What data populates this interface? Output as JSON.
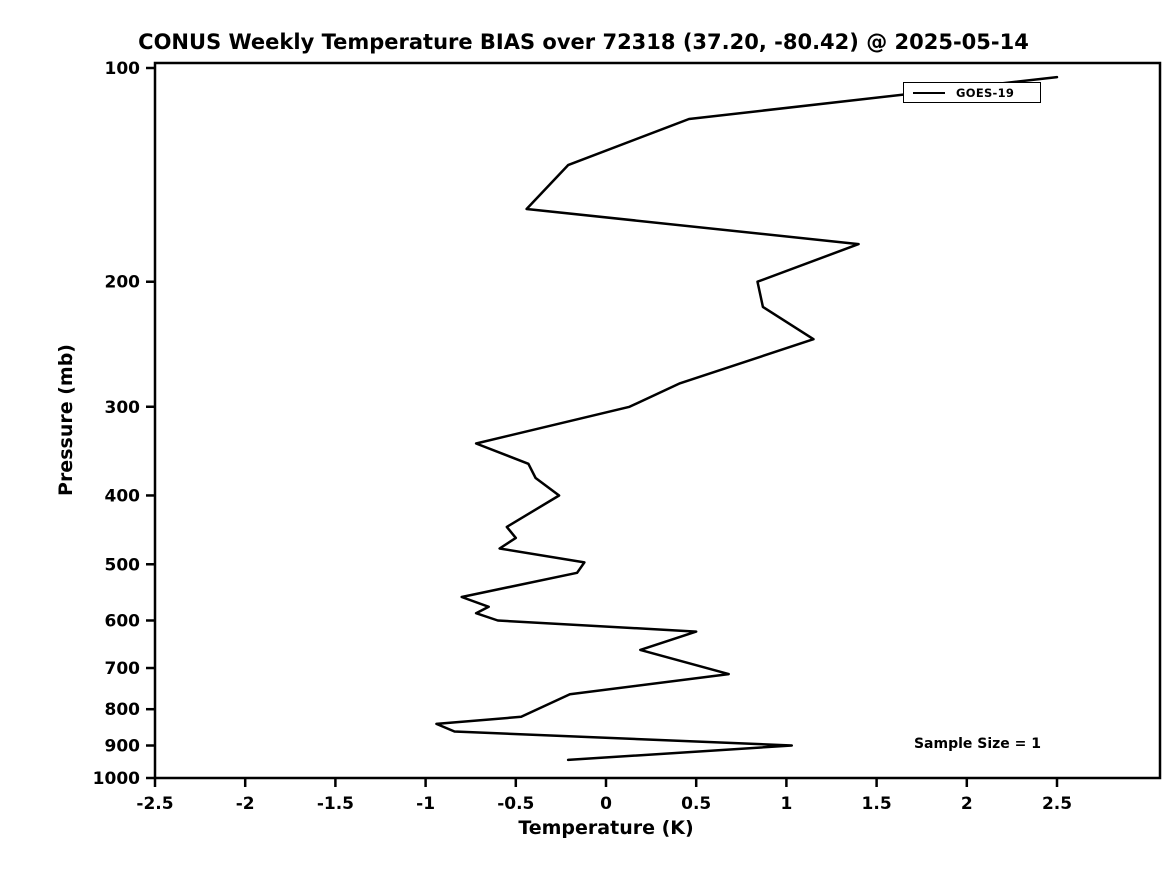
{
  "colors": {
    "line": "#000000",
    "frame": "#000000",
    "background": "#ffffff"
  },
  "chart_data": {
    "type": "line",
    "title": "CONUS Weekly Temperature BIAS over 72318 (37.20, -80.42) @ 2025-05-14",
    "xlabel": "Temperature (K)",
    "ylabel": "Pressure (mb)",
    "legend_label": "GOES-19",
    "legend_position": "upper right",
    "annotation": "Sample Size = 1",
    "xlim": [
      -2.5,
      2.5
    ],
    "ylim": [
      100,
      1000
    ],
    "y_scale": "log",
    "y_axis_inverted": true,
    "grid": false,
    "x_ticks": [
      -2.5,
      -2,
      -1.5,
      -1,
      -0.5,
      0,
      0.5,
      1,
      1.5,
      2,
      2.5
    ],
    "x_tick_labels": [
      "-2.5",
      "-2",
      "-1.5",
      "-1",
      "-0.5",
      "0",
      "0.5",
      "1",
      "1.5",
      "2",
      "2.5"
    ],
    "y_ticks": [
      100,
      200,
      300,
      400,
      500,
      600,
      700,
      800,
      900,
      1000
    ],
    "y_tick_labels": [
      "100",
      "200",
      "300",
      "400",
      "500",
      "600",
      "700",
      "800",
      "900",
      "1000"
    ],
    "series": [
      {
        "name": "GOES-19",
        "color": "#000000",
        "x_temperature_bias_K": [
          2.5,
          0.46,
          -0.21,
          -0.44,
          1.4,
          0.84,
          0.87,
          1.15,
          0.41,
          0.13,
          -0.72,
          -0.43,
          -0.39,
          -0.26,
          -0.55,
          -0.5,
          -0.59,
          -0.12,
          -0.16,
          -0.8,
          -0.65,
          -0.72,
          -0.6,
          0.5,
          0.19,
          0.68,
          -0.2,
          -0.47,
          -0.94,
          -0.84,
          1.03,
          -0.21
        ],
        "y_pressure_mb": [
          103,
          118,
          137,
          158,
          177,
          200,
          217,
          241,
          278,
          300,
          338,
          361,
          378,
          400,
          443,
          459,
          475,
          497,
          514,
          556,
          574,
          586,
          600,
          622,
          660,
          714,
          762,
          820,
          839,
          860,
          900,
          943
        ]
      }
    ]
  }
}
